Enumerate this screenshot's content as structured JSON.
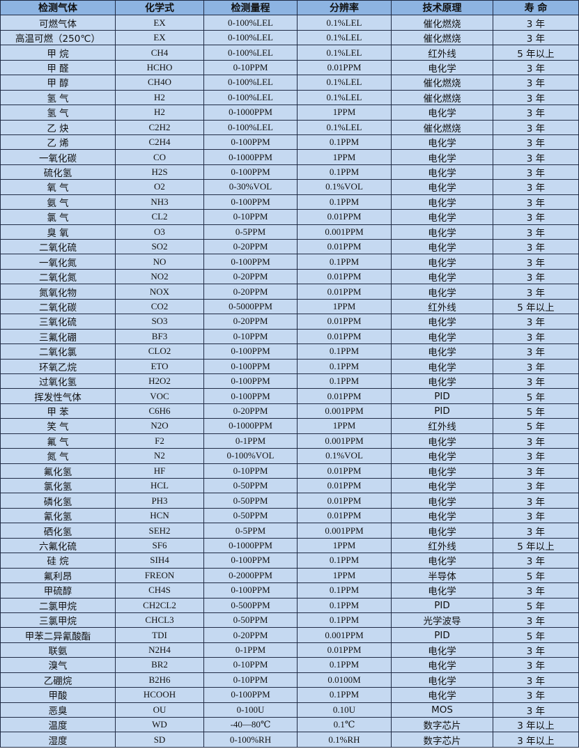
{
  "table": {
    "headers": [
      "检测气体",
      "化学式",
      "检测量程",
      "分辨率",
      "技术原理",
      "寿 命"
    ],
    "rows": [
      [
        "可燃气体",
        "EX",
        "0-100%LEL",
        "0.1%LEL",
        "催化燃烧",
        "3 年"
      ],
      [
        "高温可燃（250℃）",
        "EX",
        "0-100%LEL",
        "0.1%LEL",
        "催化燃烧",
        "3 年"
      ],
      [
        "甲 烷",
        "CH4",
        "0-100%LEL",
        "0.1%LEL",
        "红外线",
        "5 年以上"
      ],
      [
        "甲 醛",
        "HCHO",
        "0-10PPM",
        "0.01PPM",
        "电化学",
        "3 年"
      ],
      [
        "甲 醇",
        "CH4O",
        "0-100%LEL",
        "0.1%LEL",
        "催化燃烧",
        "3 年"
      ],
      [
        "氢 气",
        "H2",
        "0-100%LEL",
        "0.1%LEL",
        "催化燃烧",
        "3 年"
      ],
      [
        "氢 气",
        "H2",
        "0-1000PPM",
        "1PPM",
        "电化学",
        "3 年"
      ],
      [
        "乙 炔",
        "C2H2",
        "0-100%LEL",
        "0.1%LEL",
        "催化燃烧",
        "3 年"
      ],
      [
        "乙 烯",
        "C2H4",
        "0-100PPM",
        "0.1PPM",
        "电化学",
        "3 年"
      ],
      [
        "一氧化碳",
        "CO",
        "0-1000PPM",
        "1PPM",
        "电化学",
        "3 年"
      ],
      [
        "硫化氢",
        "H2S",
        "0-100PPM",
        "0.1PPM",
        "电化学",
        "3 年"
      ],
      [
        "氧 气",
        "O2",
        "0-30%VOL",
        "0.1%VOL",
        "电化学",
        "3 年"
      ],
      [
        "氨 气",
        "NH3",
        "0-100PPM",
        "0.1PPM",
        "电化学",
        "3 年"
      ],
      [
        "氯 气",
        "CL2",
        "0-10PPM",
        "0.01PPM",
        "电化学",
        "3 年"
      ],
      [
        "臭 氧",
        "O3",
        "0-5PPM",
        "0.001PPM",
        "电化学",
        "3 年"
      ],
      [
        "二氧化硫",
        "SO2",
        "0-20PPM",
        "0.01PPM",
        "电化学",
        "3 年"
      ],
      [
        "一氧化氮",
        "NO",
        "0-100PPM",
        "0.1PPM",
        "电化学",
        "3 年"
      ],
      [
        "二氧化氮",
        "NO2",
        "0-20PPM",
        "0.01PPM",
        "电化学",
        "3 年"
      ],
      [
        "氮氧化物",
        "NOX",
        "0-20PPM",
        "0.01PPM",
        "电化学",
        "3 年"
      ],
      [
        "二氧化碳",
        "CO2",
        "0-5000PPM",
        "1PPM",
        "红外线",
        "5 年以上"
      ],
      [
        "三氧化硫",
        "SO3",
        "0-20PPM",
        "0.01PPM",
        "电化学",
        "3 年"
      ],
      [
        "三氟化硼",
        "BF3",
        "0-10PPM",
        "0.01PPM",
        "电化学",
        "3 年"
      ],
      [
        "二氧化氯",
        "CLO2",
        "0-100PPM",
        "0.1PPM",
        "电化学",
        "3 年"
      ],
      [
        "环氧乙烷",
        "ETO",
        "0-100PPM",
        "0.1PPM",
        "电化学",
        "3 年"
      ],
      [
        "过氧化氢",
        "H2O2",
        "0-100PPM",
        "0.1PPM",
        "电化学",
        "3 年"
      ],
      [
        "挥发性气体",
        "VOC",
        "0-100PPM",
        "0.01PPM",
        "PID",
        "5 年"
      ],
      [
        "甲 苯",
        "C6H6",
        "0-20PPM",
        "0.001PPM",
        "PID",
        "5 年"
      ],
      [
        "笑 气",
        "N2O",
        "0-1000PPM",
        "1PPM",
        "红外线",
        "5 年"
      ],
      [
        "氟 气",
        "F2",
        "0-1PPM",
        "0.001PPM",
        "电化学",
        "3 年"
      ],
      [
        "氮 气",
        "N2",
        "0-100%VOL",
        "0.1%VOL",
        "电化学",
        "3 年"
      ],
      [
        "氟化氢",
        "HF",
        "0-10PPM",
        "0.01PPM",
        "电化学",
        "3 年"
      ],
      [
        "氯化氢",
        "HCL",
        "0-50PPM",
        "0.01PPM",
        "电化学",
        "3 年"
      ],
      [
        "磷化氢",
        "PH3",
        "0-50PPM",
        "0.01PPM",
        "电化学",
        "3 年"
      ],
      [
        "氰化氢",
        "HCN",
        "0-50PPM",
        "0.01PPM",
        "电化学",
        "3 年"
      ],
      [
        "硒化氢",
        "SEH2",
        "0-5PPM",
        "0.001PPM",
        "电化学",
        "3 年"
      ],
      [
        "六氟化硫",
        "SF6",
        "0-1000PPM",
        "1PPM",
        "红外线",
        "5 年以上"
      ],
      [
        "硅 烷",
        "SIH4",
        "0-100PPM",
        "0.1PPM",
        "电化学",
        "3 年"
      ],
      [
        "氟利昂",
        "FREON",
        "0-2000PPM",
        "1PPM",
        "半导体",
        "5 年"
      ],
      [
        "甲硫醇",
        "CH4S",
        "0-100PPM",
        "0.1PPM",
        "电化学",
        "3 年"
      ],
      [
        "二氯甲烷",
        "CH2CL2",
        "0-500PPM",
        "0.1PPM",
        "PID",
        "5 年"
      ],
      [
        "三氯甲烷",
        "CHCL3",
        "0-50PPM",
        "0.1PPM",
        "光学波导",
        "3 年"
      ],
      [
        "甲苯二异氰酸酯",
        "TDI",
        "0-20PPM",
        "0.001PPM",
        "PID",
        "5 年"
      ],
      [
        "联氨",
        "N2H4",
        "0-1PPM",
        "0.01PPM",
        "电化学",
        "3 年"
      ],
      [
        "溴气",
        "BR2",
        "0-10PPM",
        "0.1PPM",
        "电化学",
        "3 年"
      ],
      [
        "乙硼烷",
        "B2H6",
        "0-10PPM",
        "0.0100M",
        "电化学",
        "3 年"
      ],
      [
        "甲酸",
        "HCOOH",
        "0-100PPM",
        "0.1PPM",
        "电化学",
        "3 年"
      ],
      [
        "恶臭",
        "OU",
        "0-100U",
        "0.10U",
        "MOS",
        "3 年"
      ],
      [
        "温度",
        "WD",
        "-40—80℃",
        "0.1℃",
        "数字芯片",
        "3 年以上"
      ],
      [
        "湿度",
        "SD",
        "0-100%RH",
        "0.1%RH",
        "数字芯片",
        "3 年以上"
      ]
    ]
  },
  "colors": {
    "header_bg": "#8db4e2",
    "cell_bg": "#c5d9f1",
    "border": "#1f2a44"
  }
}
